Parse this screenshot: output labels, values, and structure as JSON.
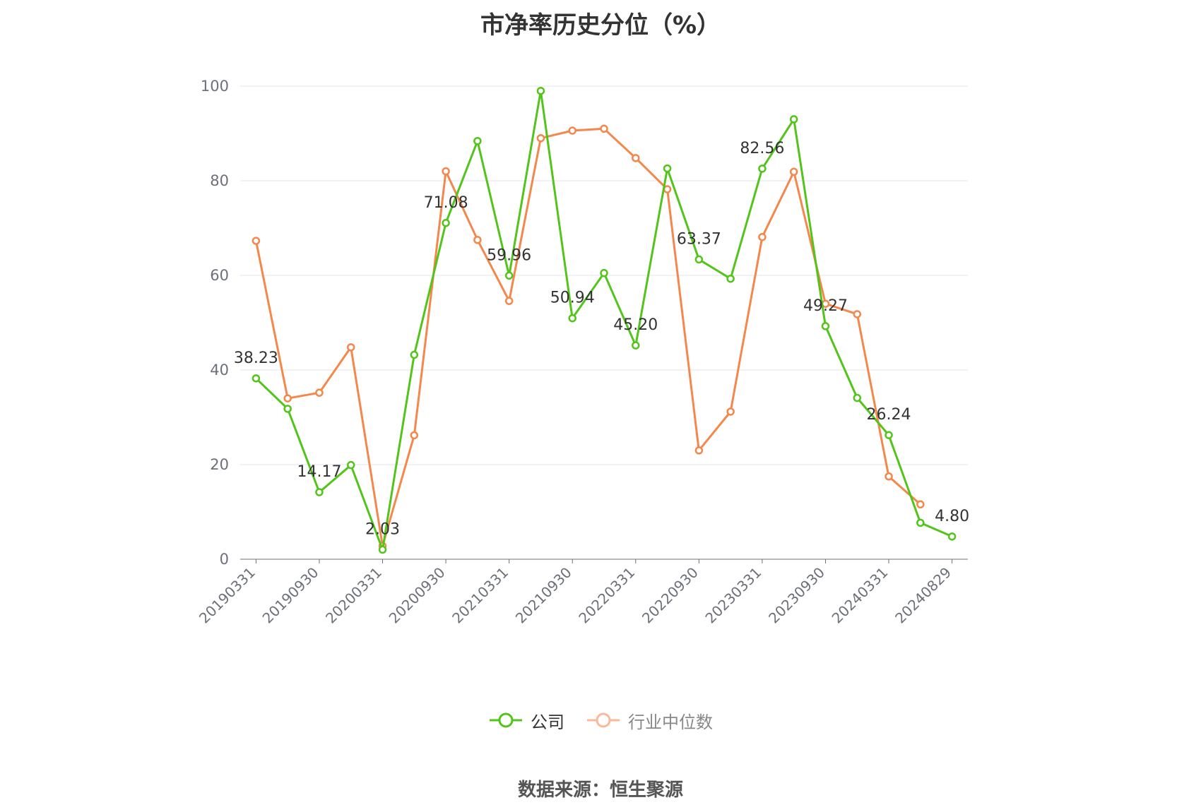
{
  "title": "市净率历史分位（%）",
  "source": "数据来源：恒生聚源",
  "colors": {
    "company": "#52c41a",
    "industry": "#f4874b",
    "industry_legend": "#f9b99a",
    "grid": "#e0e6f1",
    "axis": "#6e7079"
  },
  "legend": [
    {
      "name": "公司",
      "color": "#52c41a",
      "text_color": "#333333"
    },
    {
      "name": "行业中位数",
      "color": "#f9b99a",
      "text_color": "#888888"
    }
  ],
  "chart_data": {
    "type": "line",
    "title": "市净率历史分位（%）",
    "ylim": [
      0,
      100
    ],
    "yticks": [
      0,
      20,
      40,
      60,
      80,
      100
    ],
    "grid": true,
    "legend_position": "bottom",
    "x": [
      "20190331",
      "20190630",
      "20190930",
      "20191231",
      "20200331",
      "20200630",
      "20200930",
      "20201231",
      "20210331",
      "20210630",
      "20210930",
      "20211231",
      "20220331",
      "20220630",
      "20220930",
      "20221231",
      "20230331",
      "20230630",
      "20230930",
      "20231231",
      "20240331",
      "20240630",
      "20240829"
    ],
    "x_tick_labels": [
      "20190331",
      "20190930",
      "20200331",
      "20200930",
      "20210331",
      "20210930",
      "20220331",
      "20220930",
      "20230331",
      "20230930",
      "20240331",
      "20240829"
    ],
    "series": [
      {
        "name": "公司",
        "values": [
          38.23,
          31.8,
          14.17,
          19.9,
          2.03,
          43.2,
          71.08,
          88.4,
          59.96,
          99.0,
          50.94,
          60.5,
          45.2,
          82.6,
          63.37,
          59.3,
          82.56,
          93.0,
          49.27,
          34.1,
          26.24,
          7.7,
          4.8
        ],
        "data_labels": [
          {
            "index": 0,
            "text": "38.23"
          },
          {
            "index": 2,
            "text": "14.17"
          },
          {
            "index": 4,
            "text": "2.03"
          },
          {
            "index": 6,
            "text": "71.08"
          },
          {
            "index": 8,
            "text": "59.96"
          },
          {
            "index": 10,
            "text": "50.94"
          },
          {
            "index": 12,
            "text": "45.20"
          },
          {
            "index": 14,
            "text": "63.37"
          },
          {
            "index": 16,
            "text": "82.56"
          },
          {
            "index": 18,
            "text": "49.27"
          },
          {
            "index": 20,
            "text": "26.24"
          },
          {
            "index": 22,
            "text": "4.80"
          }
        ]
      },
      {
        "name": "行业中位数",
        "values": [
          67.3,
          34.0,
          35.2,
          44.8,
          2.8,
          26.2,
          82.0,
          67.5,
          54.6,
          89.0,
          90.6,
          91.0,
          84.8,
          78.2,
          23.0,
          31.2,
          68.1,
          81.9,
          54.0,
          51.8,
          17.5,
          11.6,
          null
        ]
      }
    ]
  }
}
